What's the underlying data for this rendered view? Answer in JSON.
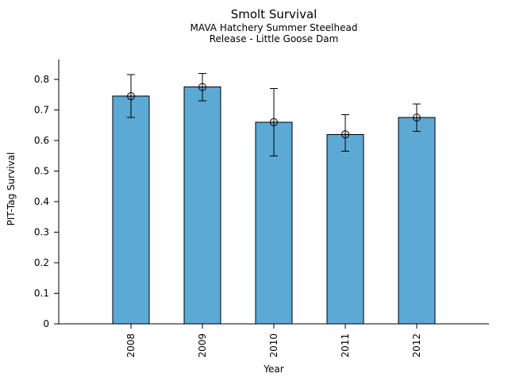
{
  "chart_data": {
    "type": "bar",
    "title": "Smolt Survival",
    "subtitle": [
      "MAVA Hatchery Summer Steelhead",
      "Release - Little Goose Dam"
    ],
    "xlabel": "Year",
    "ylabel": "PIT-Tag Survival",
    "categories": [
      "2008",
      "2009",
      "2010",
      "2011",
      "2012"
    ],
    "series": [
      {
        "name": "PIT-Tag Survival",
        "values": [
          0.745,
          0.775,
          0.66,
          0.62,
          0.675
        ],
        "error_low": [
          0.675,
          0.73,
          0.55,
          0.565,
          0.63
        ],
        "error_high": [
          0.815,
          0.82,
          0.77,
          0.685,
          0.72
        ]
      }
    ],
    "ylim": [
      0,
      0.8
    ],
    "yticks": [
      0,
      0.1,
      0.2,
      0.3,
      0.4,
      0.5,
      0.6,
      0.7,
      0.8
    ],
    "ytick_labels": [
      "0",
      "0.1",
      "0.2",
      "0.3",
      "0.4",
      "0.5",
      "0.6",
      "0.7",
      "0.8"
    ],
    "grid": false,
    "legend": "none",
    "marker_style": "open-circle-plus",
    "x_tick_label_rotation": -90,
    "colors": {
      "bar_fill": "#5BA9D4",
      "bar_stroke": "#000000",
      "error_bar": "#000000",
      "axis": "#000000",
      "text": "#000000",
      "background": "#FFFFFF"
    }
  }
}
